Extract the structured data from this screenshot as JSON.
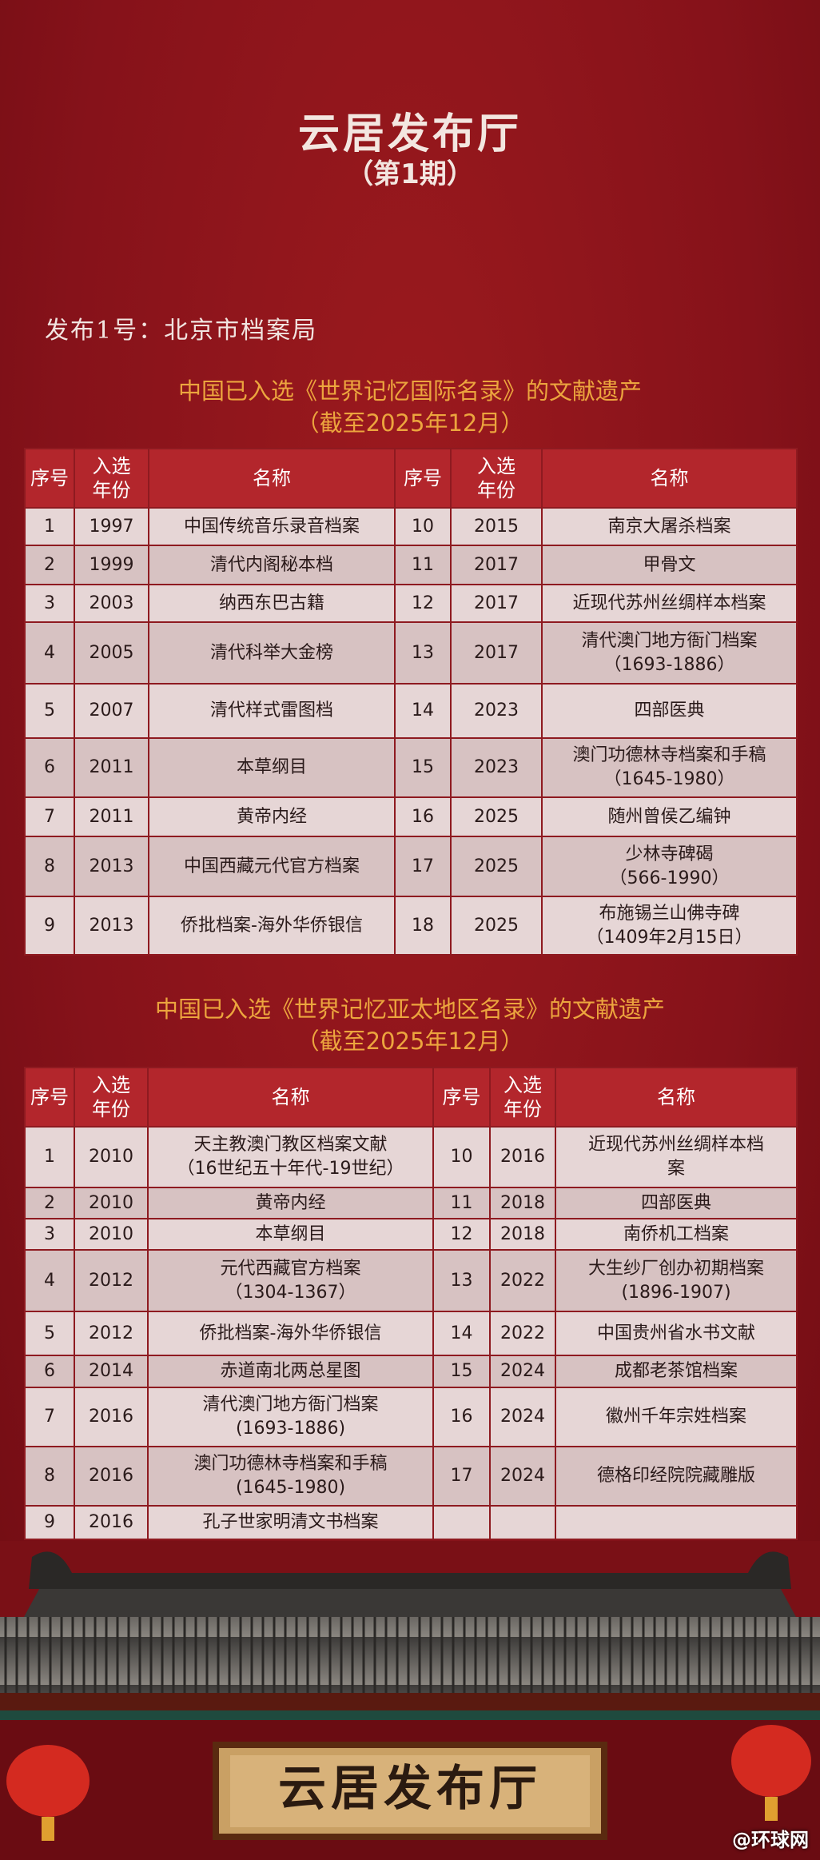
{
  "header": {
    "title": "云居发布厅",
    "subtitle": "（第1期）"
  },
  "release": "发布1号：北京市档案局",
  "table1": {
    "title": [
      "中国已入选《世界记忆国际名录》的文献遗产",
      "（截至2025年12月）"
    ],
    "header": [
      "序号",
      "入选\n年份",
      "名称",
      "序号",
      "入选\n年份",
      "名称"
    ],
    "rows": [
      [
        "1",
        "1997",
        "中国传统音乐录音档案",
        "10",
        "2015",
        "南京大屠杀档案"
      ],
      [
        "2",
        "1999",
        "清代内阁秘本档",
        "11",
        "2017",
        "甲骨文"
      ],
      [
        "3",
        "2003",
        "纳西东巴古籍",
        "12",
        "2017",
        "近现代苏州丝绸样本档案"
      ],
      [
        "4",
        "2005",
        "清代科举大金榜",
        "13",
        "2017",
        "清代澳门地方衙门档案\n（1693-1886）"
      ],
      [
        "5",
        "2007",
        "清代样式雷图档",
        "14",
        "2023",
        "四部医典"
      ],
      [
        "6",
        "2011",
        "本草纲目",
        "15",
        "2023",
        "澳门功德林寺档案和手稿\n（1645-1980）"
      ],
      [
        "7",
        "2011",
        "黄帝内经",
        "16",
        "2025",
        "随州曾侯乙编钟"
      ],
      [
        "8",
        "2013",
        "中国西藏元代官方档案",
        "17",
        "2025",
        "少林寺碑碣\n（566-1990）"
      ],
      [
        "9",
        "2013",
        "侨批档案-海外华侨银信",
        "18",
        "2025",
        "布施锡兰山佛寺碑\n（1409年2月15日）"
      ]
    ]
  },
  "table2": {
    "title": [
      "中国已入选《世界记忆亚太地区名录》的文献遗产",
      "（截至2025年12月）"
    ],
    "header": [
      "序号",
      "入选\n年份",
      "名称",
      "序号",
      "入选\n年份",
      "名称"
    ],
    "rows": [
      [
        "1",
        "2010",
        "天主教澳门教区档案文献\n（16世纪五十年代-19世纪）",
        "10",
        "2016",
        "近现代苏州丝绸样本档\n案"
      ],
      [
        "2",
        "2010",
        "黄帝内经",
        "11",
        "2018",
        "四部医典"
      ],
      [
        "3",
        "2010",
        "本草纲目",
        "12",
        "2018",
        "南侨机工档案"
      ],
      [
        "4",
        "2012",
        "元代西藏官方档案\n（1304-1367）",
        "13",
        "2022",
        "大生纱厂创办初期档案\n(1896-1907)"
      ],
      [
        "5",
        "2012",
        "侨批档案-海外华侨银信",
        "14",
        "2022",
        "中国贵州省水书文献"
      ],
      [
        "6",
        "2014",
        "赤道南北两总星图",
        "15",
        "2024",
        "成都老茶馆档案"
      ],
      [
        "7",
        "2016",
        "清代澳门地方衙门档案\n(1693-1886)",
        "16",
        "2024",
        "徽州千年宗姓档案"
      ],
      [
        "8",
        "2016",
        "澳门功德林寺档案和手稿\n(1645-1980)",
        "17",
        "2024",
        "德格印经院院藏雕版"
      ],
      [
        "9",
        "2016",
        "孔子世家明清文书档案"
      ]
    ]
  },
  "sign": "云居发布厅",
  "watermark": "@环球网"
}
